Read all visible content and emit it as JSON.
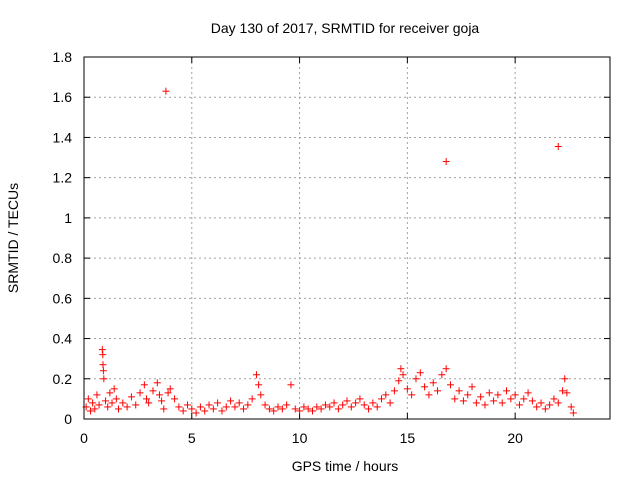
{
  "chart_data": {
    "type": "scatter",
    "title": "Day 130 of 2017, SRMTID for receiver goja",
    "xlabel": "GPS time / hours",
    "ylabel": "SRMTID / TECUs",
    "xlim": [
      0,
      24.4
    ],
    "ylim": [
      0,
      1.8
    ],
    "xticks": [
      0,
      5,
      10,
      15,
      20
    ],
    "yticks": [
      0,
      0.2,
      0.4,
      0.6,
      0.8,
      1,
      1.2,
      1.4,
      1.6,
      1.8
    ],
    "xtick_labels": [
      "0",
      "5",
      "10",
      "15",
      "20"
    ],
    "ytick_labels": [
      "0",
      "0.2",
      "0.4",
      "0.6",
      "0.8",
      "1",
      "1.2",
      "1.4",
      "1.6",
      "1.8"
    ],
    "grid": true,
    "marker": "+",
    "color": "#ff0000",
    "series": [
      {
        "name": "SRMTID",
        "points": [
          [
            3.8,
            1.63
          ],
          [
            16.8,
            1.28
          ],
          [
            22.0,
            1.355
          ],
          [
            0.85,
            0.345
          ],
          [
            0.87,
            0.32
          ],
          [
            0.88,
            0.27
          ],
          [
            0.9,
            0.24
          ],
          [
            0.92,
            0.2
          ],
          [
            0.1,
            0.06
          ],
          [
            0.2,
            0.1
          ],
          [
            0.3,
            0.04
          ],
          [
            0.4,
            0.08
          ],
          [
            0.5,
            0.05
          ],
          [
            0.6,
            0.12
          ],
          [
            0.7,
            0.07
          ],
          [
            1.0,
            0.09
          ],
          [
            1.1,
            0.06
          ],
          [
            1.2,
            0.13
          ],
          [
            1.3,
            0.08
          ],
          [
            1.4,
            0.15
          ],
          [
            1.5,
            0.1
          ],
          [
            1.6,
            0.05
          ],
          [
            1.8,
            0.08
          ],
          [
            2.0,
            0.06
          ],
          [
            2.2,
            0.11
          ],
          [
            2.4,
            0.07
          ],
          [
            2.6,
            0.13
          ],
          [
            2.8,
            0.17
          ],
          [
            2.9,
            0.1
          ],
          [
            3.0,
            0.08
          ],
          [
            3.2,
            0.14
          ],
          [
            3.4,
            0.18
          ],
          [
            3.5,
            0.12
          ],
          [
            3.6,
            0.09
          ],
          [
            3.7,
            0.05
          ],
          [
            3.9,
            0.13
          ],
          [
            4.0,
            0.15
          ],
          [
            4.2,
            0.1
          ],
          [
            4.4,
            0.06
          ],
          [
            4.6,
            0.04
          ],
          [
            4.8,
            0.07
          ],
          [
            5.0,
            0.05
          ],
          [
            5.2,
            0.03
          ],
          [
            5.4,
            0.06
          ],
          [
            5.6,
            0.04
          ],
          [
            5.8,
            0.07
          ],
          [
            6.0,
            0.05
          ],
          [
            6.2,
            0.08
          ],
          [
            6.4,
            0.04
          ],
          [
            6.6,
            0.06
          ],
          [
            6.8,
            0.09
          ],
          [
            7.0,
            0.06
          ],
          [
            7.2,
            0.08
          ],
          [
            7.4,
            0.05
          ],
          [
            7.6,
            0.07
          ],
          [
            7.8,
            0.1
          ],
          [
            8.0,
            0.22
          ],
          [
            8.1,
            0.17
          ],
          [
            8.2,
            0.12
          ],
          [
            8.4,
            0.07
          ],
          [
            8.6,
            0.05
          ],
          [
            8.8,
            0.04
          ],
          [
            9.0,
            0.06
          ],
          [
            9.2,
            0.05
          ],
          [
            9.4,
            0.07
          ],
          [
            9.6,
            0.17
          ],
          [
            9.8,
            0.05
          ],
          [
            10.0,
            0.04
          ],
          [
            10.2,
            0.06
          ],
          [
            10.4,
            0.05
          ],
          [
            10.6,
            0.04
          ],
          [
            10.8,
            0.06
          ],
          [
            11.0,
            0.05
          ],
          [
            11.2,
            0.07
          ],
          [
            11.4,
            0.06
          ],
          [
            11.6,
            0.08
          ],
          [
            11.8,
            0.05
          ],
          [
            12.0,
            0.07
          ],
          [
            12.2,
            0.09
          ],
          [
            12.4,
            0.06
          ],
          [
            12.6,
            0.08
          ],
          [
            12.8,
            0.1
          ],
          [
            13.0,
            0.07
          ],
          [
            13.2,
            0.05
          ],
          [
            13.4,
            0.08
          ],
          [
            13.6,
            0.06
          ],
          [
            13.8,
            0.1
          ],
          [
            14.0,
            0.12
          ],
          [
            14.2,
            0.08
          ],
          [
            14.4,
            0.14
          ],
          [
            14.6,
            0.19
          ],
          [
            14.7,
            0.25
          ],
          [
            14.8,
            0.22
          ],
          [
            15.0,
            0.15
          ],
          [
            15.2,
            0.12
          ],
          [
            15.4,
            0.2
          ],
          [
            15.6,
            0.23
          ],
          [
            15.8,
            0.16
          ],
          [
            16.0,
            0.12
          ],
          [
            16.2,
            0.18
          ],
          [
            16.4,
            0.14
          ],
          [
            16.6,
            0.22
          ],
          [
            16.8,
            0.25
          ],
          [
            17.0,
            0.17
          ],
          [
            17.2,
            0.1
          ],
          [
            17.4,
            0.14
          ],
          [
            17.6,
            0.09
          ],
          [
            17.8,
            0.12
          ],
          [
            18.0,
            0.16
          ],
          [
            18.2,
            0.08
          ],
          [
            18.4,
            0.11
          ],
          [
            18.6,
            0.07
          ],
          [
            18.8,
            0.13
          ],
          [
            19.0,
            0.09
          ],
          [
            19.2,
            0.12
          ],
          [
            19.4,
            0.08
          ],
          [
            19.6,
            0.14
          ],
          [
            19.8,
            0.1
          ],
          [
            20.0,
            0.12
          ],
          [
            20.2,
            0.07
          ],
          [
            20.4,
            0.1
          ],
          [
            20.6,
            0.13
          ],
          [
            20.8,
            0.09
          ],
          [
            21.0,
            0.06
          ],
          [
            21.2,
            0.08
          ],
          [
            21.4,
            0.05
          ],
          [
            21.6,
            0.07
          ],
          [
            21.8,
            0.1
          ],
          [
            22.0,
            0.08
          ],
          [
            22.2,
            0.14
          ],
          [
            22.3,
            0.2
          ],
          [
            22.4,
            0.13
          ],
          [
            22.6,
            0.06
          ],
          [
            22.7,
            0.03
          ]
        ]
      }
    ]
  }
}
